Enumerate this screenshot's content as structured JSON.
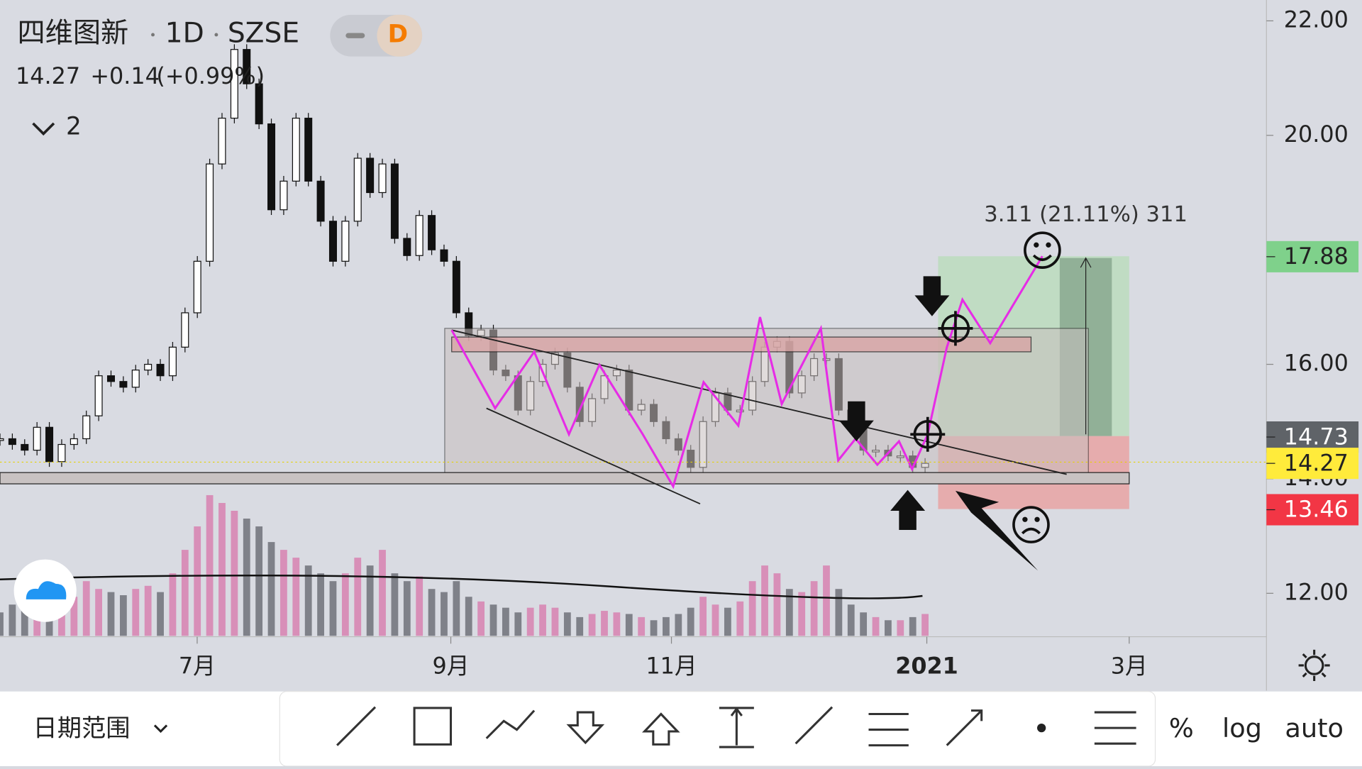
{
  "header": {
    "symbol": "四维图新",
    "interval": "1D",
    "exchange": "SZSE",
    "badge": "D",
    "price": "14.27",
    "change": "+0.14",
    "change_pct": "(+0.99%)",
    "indicators_count": "2"
  },
  "chart_data": {
    "type": "candlestick",
    "x_labels": [
      "7月",
      "9月",
      "11月",
      "2021",
      "3月"
    ],
    "closes": [
      14.7,
      14.6,
      14.5,
      14.9,
      14.3,
      14.6,
      14.7,
      15.1,
      15.8,
      15.7,
      15.6,
      15.9,
      16.0,
      15.8,
      16.3,
      16.9,
      17.8,
      19.5,
      20.3,
      21.5,
      20.9,
      20.2,
      18.7,
      19.2,
      20.3,
      19.2,
      18.5,
      17.8,
      18.5,
      19.6,
      19.0,
      19.5,
      18.2,
      17.9,
      18.6,
      18.0,
      17.8,
      16.9,
      16.5,
      16.6,
      15.9,
      15.8,
      15.2,
      15.7,
      16.0,
      16.2,
      15.6,
      15.0,
      15.4,
      15.8,
      15.9,
      15.2,
      15.3,
      15.0,
      14.7,
      14.5,
      14.2,
      15.0,
      15.5,
      15.2,
      15.2,
      15.7,
      16.3,
      16.4,
      15.5,
      15.8,
      16.1,
      16.1,
      15.2,
      14.9,
      14.5,
      14.5,
      14.4,
      14.4,
      14.2,
      14.27
    ],
    "volumes": [
      15,
      20,
      25,
      22,
      30,
      28,
      25,
      35,
      30,
      28,
      26,
      30,
      32,
      28,
      40,
      55,
      70,
      90,
      85,
      80,
      75,
      70,
      60,
      55,
      50,
      45,
      40,
      35,
      40,
      50,
      45,
      55,
      40,
      35,
      38,
      30,
      28,
      35,
      25,
      22,
      20,
      18,
      15,
      18,
      20,
      18,
      15,
      12,
      14,
      16,
      15,
      14,
      12,
      10,
      12,
      14,
      18,
      25,
      20,
      18,
      22,
      35,
      45,
      40,
      30,
      28,
      35,
      45,
      30,
      20,
      15,
      12,
      10,
      10,
      12,
      14
    ],
    "ylim": [
      11.3,
      22.3
    ],
    "yticks": [
      {
        "value": 22,
        "label": "22.00"
      },
      {
        "value": 20,
        "label": "20.00"
      },
      {
        "value": 16,
        "label": "16.00"
      },
      {
        "value": 14,
        "label": "14.00"
      },
      {
        "value": 12,
        "label": "12.00"
      }
    ],
    "price_labels": [
      {
        "value": 17.88,
        "label": "17.88",
        "color": "#7fd18b"
      },
      {
        "value": 14.73,
        "label": "14.73",
        "color": "#5f6368"
      },
      {
        "value": 14.27,
        "label": "14.27",
        "color": "#ffeb3b"
      },
      {
        "value": 13.46,
        "label": "13.46",
        "color": "#f23645"
      }
    ],
    "measure_label": "3.11 (21.11%) 311"
  },
  "toolbar": {
    "date_range": "日期范围",
    "percent": "%",
    "log": "log",
    "auto": "auto"
  }
}
